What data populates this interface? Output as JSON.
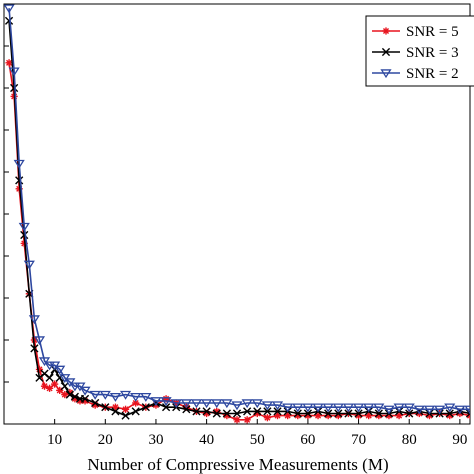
{
  "chart_data": {
    "type": "line",
    "title": "",
    "xlabel": "Number of Compressive Measurements (M)",
    "ylabel": "",
    "xlim": [
      0,
      92
    ],
    "ylim": [
      0,
      1.0
    ],
    "xticks": [
      10,
      20,
      30,
      40,
      50,
      60,
      70,
      80,
      90
    ],
    "xtick_labels": [
      "10",
      "20",
      "30",
      "40",
      "50",
      "60",
      "70",
      "80",
      "90"
    ],
    "legend_position": "top-right",
    "series": [
      {
        "name": "SNR = 5",
        "color": "#e8141e",
        "marker": "asterisk",
        "x": [
          1,
          2,
          3,
          4,
          5,
          6,
          7,
          8,
          9,
          10,
          11,
          12,
          13,
          14,
          15,
          16,
          18,
          20,
          22,
          24,
          26,
          28,
          30,
          32,
          34,
          36,
          38,
          40,
          42,
          44,
          46,
          48,
          50,
          52,
          54,
          56,
          58,
          60,
          62,
          64,
          66,
          68,
          70,
          72,
          74,
          76,
          78,
          80,
          82,
          84,
          86,
          88,
          90,
          92
        ],
        "y": [
          0.86,
          0.78,
          0.56,
          0.43,
          0.31,
          0.2,
          0.13,
          0.09,
          0.085,
          0.095,
          0.08,
          0.07,
          0.075,
          0.06,
          0.055,
          0.055,
          0.045,
          0.04,
          0.04,
          0.035,
          0.05,
          0.04,
          0.045,
          0.06,
          0.05,
          0.04,
          0.03,
          0.025,
          0.03,
          0.02,
          0.01,
          0.01,
          0.025,
          0.015,
          0.02,
          0.02,
          0.02,
          0.02,
          0.02,
          0.02,
          0.02,
          0.025,
          0.02,
          0.02,
          0.02,
          0.02,
          0.02,
          0.025,
          0.025,
          0.02,
          0.025,
          0.02,
          0.025,
          0.02
        ]
      },
      {
        "name": "SNR = 3",
        "color": "#000000",
        "marker": "x",
        "x": [
          1,
          2,
          3,
          4,
          5,
          6,
          7,
          8,
          9,
          10,
          11,
          12,
          13,
          14,
          15,
          16,
          18,
          20,
          22,
          24,
          26,
          28,
          30,
          32,
          34,
          36,
          38,
          40,
          42,
          44,
          46,
          48,
          50,
          52,
          54,
          56,
          58,
          60,
          62,
          64,
          66,
          68,
          70,
          72,
          74,
          76,
          78,
          80,
          82,
          84,
          86,
          88,
          90,
          92
        ],
        "y": [
          0.96,
          0.8,
          0.58,
          0.45,
          0.31,
          0.18,
          0.11,
          0.12,
          0.11,
          0.13,
          0.11,
          0.09,
          0.07,
          0.065,
          0.06,
          0.06,
          0.05,
          0.04,
          0.03,
          0.02,
          0.03,
          0.04,
          0.05,
          0.04,
          0.04,
          0.035,
          0.03,
          0.03,
          0.025,
          0.025,
          0.025,
          0.03,
          0.03,
          0.03,
          0.03,
          0.03,
          0.025,
          0.025,
          0.03,
          0.025,
          0.025,
          0.025,
          0.025,
          0.03,
          0.025,
          0.025,
          0.03,
          0.025,
          0.03,
          0.025,
          0.025,
          0.025,
          0.03,
          0.025
        ]
      },
      {
        "name": "SNR = 2",
        "color": "#2e48a0",
        "marker": "triangle-down",
        "x": [
          1,
          2,
          3,
          4,
          5,
          6,
          7,
          8,
          9,
          10,
          11,
          12,
          13,
          14,
          15,
          16,
          18,
          20,
          22,
          24,
          26,
          28,
          30,
          32,
          34,
          36,
          38,
          40,
          42,
          44,
          46,
          48,
          50,
          52,
          54,
          56,
          58,
          60,
          62,
          64,
          66,
          68,
          70,
          72,
          74,
          76,
          78,
          80,
          82,
          84,
          86,
          88,
          90,
          92
        ],
        "y": [
          0.99,
          0.84,
          0.62,
          0.47,
          0.38,
          0.25,
          0.2,
          0.15,
          0.14,
          0.14,
          0.13,
          0.11,
          0.1,
          0.09,
          0.09,
          0.08,
          0.07,
          0.07,
          0.065,
          0.07,
          0.065,
          0.065,
          0.055,
          0.055,
          0.05,
          0.05,
          0.05,
          0.05,
          0.05,
          0.05,
          0.045,
          0.05,
          0.05,
          0.045,
          0.045,
          0.04,
          0.04,
          0.04,
          0.04,
          0.04,
          0.04,
          0.04,
          0.04,
          0.04,
          0.04,
          0.035,
          0.04,
          0.04,
          0.035,
          0.035,
          0.035,
          0.04,
          0.035,
          0.035
        ]
      }
    ]
  }
}
